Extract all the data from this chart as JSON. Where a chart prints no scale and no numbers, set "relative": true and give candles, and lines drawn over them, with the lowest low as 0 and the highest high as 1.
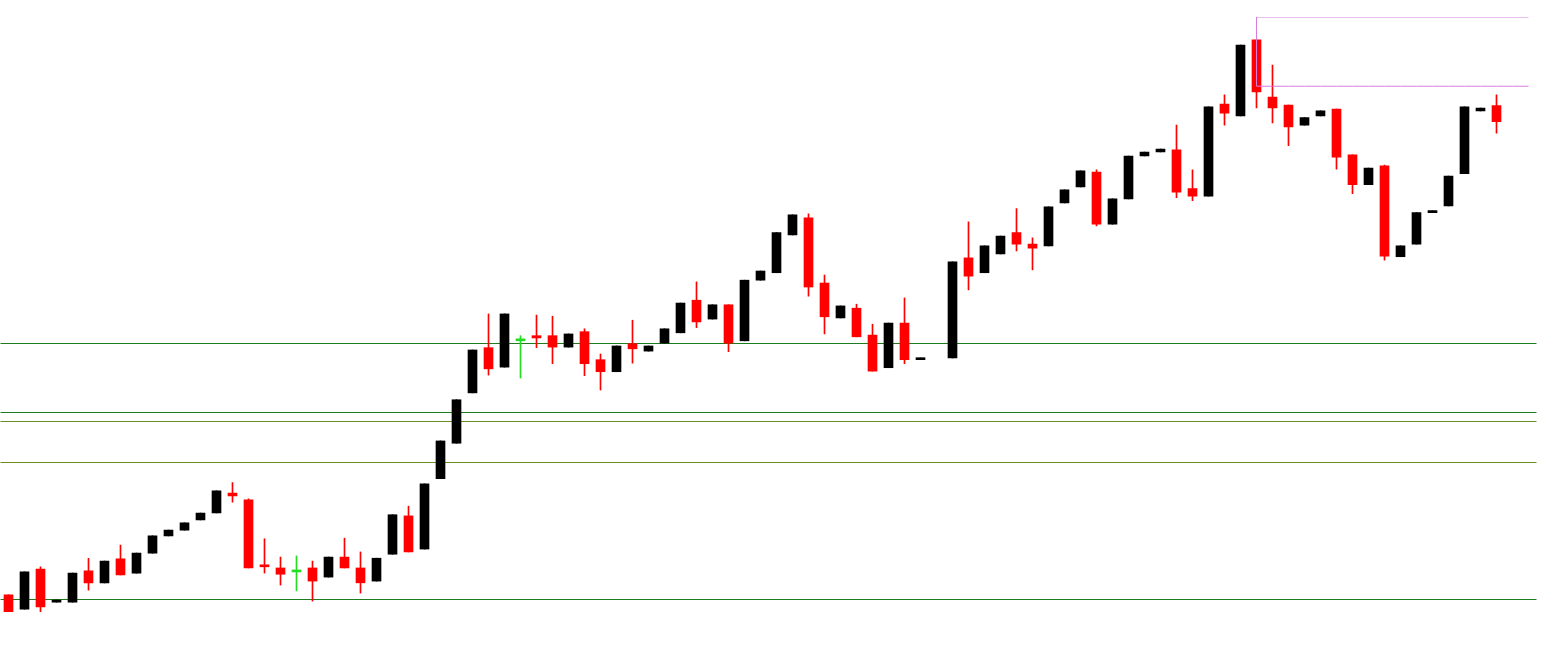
{
  "chart_data": {
    "type": "candlestick",
    "relative": true,
    "categories": [
      null,
      null,
      null,
      null,
      null,
      null,
      null,
      null,
      null,
      null,
      null,
      null,
      null,
      null,
      null,
      null,
      null,
      null,
      null,
      null,
      null,
      null,
      null,
      null,
      null,
      null,
      null,
      null,
      null,
      null,
      null,
      null,
      null,
      null,
      null,
      null,
      null,
      null,
      null,
      null,
      null,
      null,
      null,
      null,
      null,
      null,
      null,
      null,
      null,
      null,
      null,
      null,
      null,
      null,
      null,
      null,
      null,
      null,
      null,
      null,
      null,
      null,
      null,
      null,
      null,
      null,
      null,
      null,
      null,
      null,
      null,
      null,
      null,
      null,
      null,
      null,
      null,
      null,
      null,
      null,
      null,
      null,
      null,
      null,
      null,
      null,
      null,
      null,
      null,
      null,
      null,
      null,
      null,
      null,
      null,
      null
    ],
    "ohlc": [
      [
        0.03,
        0.03,
        0,
        0
      ],
      [
        0.005,
        0.07,
        0.005,
        0.07
      ],
      [
        0.075,
        0.079,
        0,
        0.009
      ],
      [
        0.017,
        0.021,
        0.017,
        0.021
      ],
      [
        0.017,
        0.068,
        0.017,
        0.068
      ],
      [
        0.072,
        0.094,
        0.038,
        0.051
      ],
      [
        0.051,
        0.089,
        0.051,
        0.089
      ],
      [
        0.093,
        0.117,
        0.065,
        0.065
      ],
      [
        0.068,
        0.103,
        0.068,
        0.103
      ],
      [
        0.103,
        0.133,
        0.103,
        0.133
      ],
      [
        0.133,
        0.143,
        0.133,
        0.143
      ],
      [
        0.143,
        0.156,
        0.143,
        0.156
      ],
      [
        0.161,
        0.173,
        0.161,
        0.173
      ],
      [
        0.173,
        0.212,
        0.173,
        0.212
      ],
      [
        0.208,
        0.226,
        0.192,
        0.203
      ],
      [
        0.196,
        0.198,
        0.077,
        0.077
      ],
      [
        0.082,
        0.128,
        0.068,
        0.079
      ],
      [
        0.077,
        0.096,
        0.047,
        0.066
      ],
      [
        0.07,
        0.098,
        0.037,
        0.071
      ],
      [
        0.077,
        0.089,
        0.019,
        0.054
      ],
      [
        0.061,
        0.096,
        0.061,
        0.096
      ],
      [
        0.096,
        0.129,
        0.077,
        0.077
      ],
      [
        0.077,
        0.105,
        0.033,
        0.051
      ],
      [
        0.054,
        0.094,
        0.054,
        0.094
      ],
      [
        0.101,
        0.17,
        0.101,
        0.17
      ],
      [
        0.168,
        0.185,
        0.105,
        0.105
      ],
      [
        0.11,
        0.224,
        0.11,
        0.224
      ],
      [
        0.233,
        0.299,
        0.233,
        0.299
      ],
      [
        0.295,
        0.371,
        0.295,
        0.371
      ],
      [
        0.383,
        0.458,
        0.383,
        0.458
      ],
      [
        0.462,
        0.521,
        0.414,
        0.425
      ],
      [
        0.428,
        0.521,
        0.428,
        0.521
      ],
      [
        0.474,
        0.483,
        0.409,
        0.475
      ],
      [
        0.483,
        0.519,
        0.462,
        0.479
      ],
      [
        0.483,
        0.517,
        0.434,
        0.463
      ],
      [
        0.463,
        0.486,
        0.463,
        0.486
      ],
      [
        0.49,
        0.495,
        0.413,
        0.434
      ],
      [
        0.441,
        0.451,
        0.388,
        0.42
      ],
      [
        0.42,
        0.465,
        0.42,
        0.465
      ],
      [
        0.469,
        0.51,
        0.435,
        0.46
      ],
      [
        0.456,
        0.465,
        0.456,
        0.465
      ],
      [
        0.47,
        0.495,
        0.47,
        0.495
      ],
      [
        0.488,
        0.54,
        0.488,
        0.54
      ],
      [
        0.545,
        0.577,
        0.497,
        0.507
      ],
      [
        0.512,
        0.537,
        0.512,
        0.537
      ],
      [
        0.537,
        0.537,
        0.455,
        0.47
      ],
      [
        0.474,
        0.58,
        0.474,
        0.58
      ],
      [
        0.58,
        0.596,
        0.58,
        0.596
      ],
      [
        0.593,
        0.663,
        0.593,
        0.663
      ],
      [
        0.659,
        0.694,
        0.659,
        0.694
      ],
      [
        0.689,
        0.696,
        0.552,
        0.568
      ],
      [
        0.575,
        0.589,
        0.486,
        0.516
      ],
      [
        0.514,
        0.535,
        0.514,
        0.535
      ],
      [
        0.531,
        0.538,
        0.481,
        0.481
      ],
      [
        0.484,
        0.503,
        0.421,
        0.421
      ],
      [
        0.427,
        0.505,
        0.427,
        0.505
      ],
      [
        0.505,
        0.549,
        0.434,
        0.441
      ],
      [
        0.441,
        0.444,
        0.441,
        0.444
      ],
      null,
      [
        0.444,
        0.612,
        0.444,
        0.612
      ],
      [
        0.619,
        0.682,
        0.563,
        0.587
      ],
      [
        0.593,
        0.64,
        0.593,
        0.64
      ],
      [
        0.626,
        0.657,
        0.626,
        0.657
      ],
      [
        0.663,
        0.705,
        0.631,
        0.643
      ],
      [
        0.643,
        0.654,
        0.598,
        0.636
      ],
      [
        0.64,
        0.708,
        0.64,
        0.708
      ],
      [
        0.715,
        0.738,
        0.715,
        0.738
      ],
      [
        0.743,
        0.771,
        0.743,
        0.771
      ],
      [
        0.769,
        0.773,
        0.675,
        0.678
      ],
      [
        0.678,
        0.722,
        0.678,
        0.722
      ],
      [
        0.722,
        0.797,
        0.722,
        0.797
      ],
      [
        0.797,
        0.804,
        0.797,
        0.804
      ],
      [
        0.804,
        0.809,
        0.804,
        0.809
      ],
      [
        0.808,
        0.851,
        0.724,
        0.734
      ],
      [
        0.74,
        0.773,
        0.719,
        0.727
      ],
      [
        0.727,
        0.883,
        0.727,
        0.883
      ],
      [
        0.888,
        0.904,
        0.851,
        0.872
      ],
      [
        0.867,
        0.991,
        0.867,
        0.991
      ],
      [
        1,
        1,
        0.881,
        0.909
      ],
      [
        0.9,
        0.956,
        0.855,
        0.881
      ],
      [
        0.886,
        0.886,
        0.815,
        0.848
      ],
      [
        0.851,
        0.864,
        0.851,
        0.864
      ],
      [
        0.867,
        0.876,
        0.867,
        0.876
      ],
      [
        0.879,
        0.879,
        0.774,
        0.795
      ],
      [
        0.799,
        0.799,
        0.731,
        0.747
      ],
      [
        0.747,
        0.776,
        0.747,
        0.776
      ],
      [
        0.78,
        0.781,
        0.615,
        0.622
      ],
      [
        0.621,
        0.64,
        0.621,
        0.64
      ],
      [
        0.643,
        0.698,
        0.643,
        0.698
      ],
      [
        0.698,
        0.701,
        0.698,
        0.701
      ],
      [
        0.71,
        0.762,
        0.71,
        0.762
      ],
      [
        0.766,
        0.883,
        0.766,
        0.883
      ],
      [
        0.876,
        0.881,
        0.876,
        0.881
      ],
      [
        0.885,
        0.904,
        0.837,
        0.857
      ],
      null,
      null
    ],
    "colors": [
      "#ff0000",
      "#000000",
      "#ff0000",
      "#000000",
      "#000000",
      "#ff0000",
      "#000000",
      "#ff0000",
      "#000000",
      "#000000",
      "#000000",
      "#000000",
      "#000000",
      "#000000",
      "#ff0000",
      "#ff0000",
      "#ff0000",
      "#ff0000",
      "#22dd22",
      "#ff0000",
      "#000000",
      "#ff0000",
      "#ff0000",
      "#000000",
      "#000000",
      "#ff0000",
      "#000000",
      "#000000",
      "#000000",
      "#000000",
      "#ff0000",
      "#000000",
      "#22dd22",
      "#ff0000",
      "#ff0000",
      "#000000",
      "#ff0000",
      "#ff0000",
      "#000000",
      "#ff0000",
      "#000000",
      "#000000",
      "#000000",
      "#ff0000",
      "#000000",
      "#ff0000",
      "#000000",
      "#000000",
      "#000000",
      "#000000",
      "#ff0000",
      "#ff0000",
      "#000000",
      "#ff0000",
      "#ff0000",
      "#000000",
      "#ff0000",
      "#000000",
      null,
      "#000000",
      "#ff0000",
      "#000000",
      "#000000",
      "#ff0000",
      "#ff0000",
      "#000000",
      "#000000",
      "#000000",
      "#ff0000",
      "#000000",
      "#000000",
      "#000000",
      "#000000",
      "#ff0000",
      "#ff0000",
      "#000000",
      "#ff0000",
      "#000000",
      "#ff0000",
      "#ff0000",
      "#ff0000",
      "#000000",
      "#000000",
      "#ff0000",
      "#ff0000",
      "#000000",
      "#ff0000",
      "#000000",
      "#000000",
      "#000000",
      "#000000",
      "#000000",
      "#000000",
      "#ff0000",
      null,
      null
    ],
    "series": [
      {
        "type": "line",
        "color": "#d87bdf",
        "values": [
          null,
          null,
          null,
          null,
          null,
          null,
          null,
          null,
          null,
          null,
          null,
          null,
          null,
          null,
          null,
          null,
          null,
          null,
          null,
          null,
          null,
          null,
          null,
          null,
          null,
          null,
          null,
          null,
          null,
          null,
          null,
          null,
          null,
          null,
          null,
          null,
          null,
          null,
          null,
          null,
          null,
          null,
          null,
          null,
          null,
          null,
          null,
          null,
          null,
          null,
          null,
          null,
          null,
          null,
          null,
          null,
          null,
          null,
          null,
          null,
          null,
          null,
          null,
          null,
          null,
          null,
          null,
          null,
          null,
          null,
          null,
          null,
          null,
          null,
          null,
          null,
          null,
          null,
          0.919,
          0.919,
          0.919,
          0.919,
          0.919,
          0.919,
          0.919,
          0.919,
          0.919,
          0.919,
          0.919,
          0.919,
          0.919,
          0.919,
          0.919,
          0.919,
          0.919,
          0.919
        ]
      },
      {
        "type": "step",
        "color": "#d87bdf",
        "values": [
          null,
          null,
          null,
          null,
          null,
          null,
          null,
          null,
          null,
          null,
          null,
          null,
          null,
          null,
          null,
          null,
          null,
          null,
          null,
          null,
          null,
          null,
          null,
          null,
          null,
          null,
          null,
          null,
          null,
          null,
          null,
          null,
          null,
          null,
          null,
          null,
          null,
          null,
          null,
          null,
          null,
          null,
          null,
          null,
          null,
          null,
          null,
          null,
          null,
          null,
          null,
          null,
          null,
          null,
          null,
          null,
          null,
          null,
          null,
          null,
          null,
          null,
          null,
          null,
          null,
          null,
          null,
          null,
          null,
          null,
          null,
          null,
          null,
          null,
          null,
          null,
          null,
          null,
          0.919,
          1.04,
          1.04,
          1.04,
          1.04,
          1.04,
          1.04,
          1.04,
          1.04,
          1.04,
          1.04,
          1.04,
          1.04,
          1.04,
          1.04,
          1.04,
          1.04,
          1.04
        ]
      }
    ],
    "ref_lines": [
      {
        "axis": "y",
        "value": 0.47,
        "color": "#1e7b1e"
      },
      {
        "axis": "y",
        "value": 0.349,
        "color": "#1e7b1e"
      },
      {
        "axis": "y",
        "value": 0.333,
        "color": "#6b8e23"
      },
      {
        "axis": "y",
        "value": 0.262,
        "color": "#6b8e23"
      },
      {
        "axis": "y",
        "value": 0.022,
        "color": "#1e7b1e"
      }
    ]
  }
}
